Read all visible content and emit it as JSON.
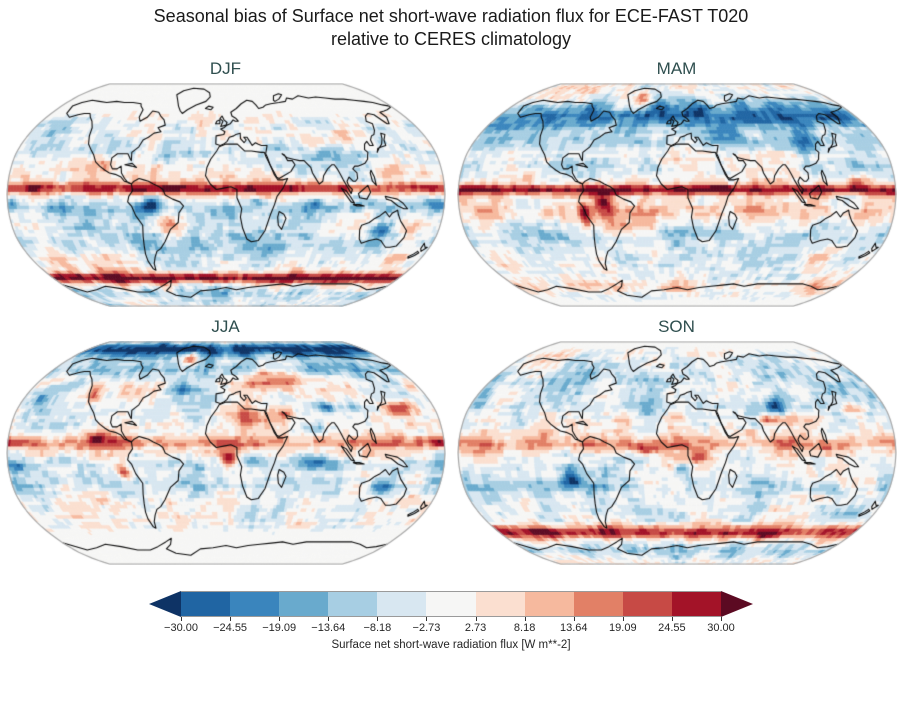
{
  "figure": {
    "title_line1": "Seasonal bias of Surface net short-wave radiation flux for ECE-FAST T020",
    "title_line2": "relative to CERES climatology",
    "title_color": "#1a1a1a",
    "panel_title_color": "#2F4F4F"
  },
  "chart_data": {
    "type": "heatmap",
    "projection": "robinson",
    "variable": "Surface net short-wave radiation flux bias",
    "units": "W m**-2",
    "panels": [
      {
        "label": "DJF",
        "seed": 7,
        "damp": {
          "pole": "north",
          "start": 55,
          "end": 70
        },
        "bands": [
          [
            5,
            4,
            26
          ],
          [
            -10,
            7,
            -12
          ],
          [
            33,
            9,
            -8
          ],
          [
            50,
            6,
            -5
          ],
          [
            -35,
            9,
            -9
          ],
          [
            -61,
            4,
            34
          ],
          [
            -74,
            5,
            -8
          ],
          [
            -85,
            6,
            -4
          ]
        ],
        "blobs": [
          [
            -62,
            -6,
            9,
            6,
            -30
          ],
          [
            -50,
            -22,
            8,
            6,
            16
          ],
          [
            24,
            -4,
            8,
            5,
            -16
          ],
          [
            25,
            -27,
            8,
            5,
            -10
          ],
          [
            75,
            -6,
            12,
            5,
            -14
          ],
          [
            133,
            -25,
            10,
            6,
            -24
          ],
          [
            118,
            -13,
            6,
            4,
            16
          ],
          [
            90,
            40,
            22,
            7,
            16
          ],
          [
            -100,
            22,
            8,
            5,
            12
          ],
          [
            178,
            -6,
            10,
            5,
            -16
          ],
          [
            -115,
            -22,
            12,
            6,
            -8
          ],
          [
            40,
            -15,
            8,
            5,
            -6
          ],
          [
            -30,
            40,
            12,
            6,
            -6
          ]
        ]
      },
      {
        "label": "MAM",
        "seed": 13,
        "damp": {
          "pole": "south",
          "start": -75,
          "end": -88
        },
        "bands": [
          [
            58,
            11,
            -24
          ],
          [
            40,
            7,
            -10
          ],
          [
            4,
            3.5,
            30
          ],
          [
            -13,
            6,
            8
          ],
          [
            -30,
            8,
            -6
          ],
          [
            -68,
            5,
            8
          ],
          [
            20,
            6,
            -4
          ]
        ],
        "blobs": [
          [
            -40,
            72,
            9,
            6,
            20
          ],
          [
            -60,
            -5,
            8,
            6,
            24
          ],
          [
            -76,
            -13,
            4,
            8,
            26
          ],
          [
            22,
            -2,
            7,
            5,
            -14
          ],
          [
            38,
            6,
            5,
            4,
            12
          ],
          [
            48,
            22,
            8,
            5,
            10
          ],
          [
            70,
            45,
            13,
            5,
            10
          ],
          [
            113,
            35,
            10,
            6,
            -12
          ],
          [
            -125,
            13,
            10,
            4,
            10
          ],
          [
            -110,
            42,
            9,
            6,
            10
          ],
          [
            100,
            -25,
            9,
            5,
            8
          ],
          [
            -65,
            -35,
            6,
            7,
            -8
          ],
          [
            150,
            10,
            12,
            5,
            14
          ]
        ]
      },
      {
        "label": "JJA",
        "seed": 29,
        "damp": {
          "pole": "south",
          "start": -52,
          "end": -66
        },
        "bands": [
          [
            80,
            8,
            -32
          ],
          [
            62,
            6,
            -12
          ],
          [
            8,
            5,
            16
          ],
          [
            -8,
            5,
            -8
          ],
          [
            -22,
            7,
            -7
          ],
          [
            35,
            6,
            -4
          ]
        ],
        "blobs": [
          [
            -40,
            72,
            9,
            6,
            22
          ],
          [
            35,
            55,
            18,
            7,
            20
          ],
          [
            58,
            54,
            12,
            6,
            16
          ],
          [
            15,
            28,
            18,
            7,
            16
          ],
          [
            50,
            28,
            10,
            6,
            22
          ],
          [
            88,
            33,
            9,
            4,
            -28
          ],
          [
            77,
            20,
            6,
            4,
            -10
          ],
          [
            150,
            33,
            16,
            5,
            28
          ],
          [
            108,
            32,
            8,
            5,
            -10
          ],
          [
            -165,
            42,
            14,
            7,
            -18
          ],
          [
            -140,
            50,
            10,
            6,
            -12
          ],
          [
            -40,
            48,
            11,
            6,
            -16
          ],
          [
            -118,
            42,
            7,
            6,
            20
          ],
          [
            -105,
            12,
            9,
            4,
            18
          ],
          [
            -85,
            -13,
            7,
            6,
            26
          ],
          [
            3,
            -4,
            8,
            5,
            22
          ],
          [
            75,
            -8,
            11,
            4,
            -14
          ],
          [
            133,
            -25,
            9,
            6,
            -8
          ],
          [
            -172,
            -10,
            8,
            5,
            -14
          ],
          [
            -110,
            -30,
            12,
            6,
            9
          ],
          [
            179,
            8,
            8,
            4,
            20
          ]
        ]
      },
      {
        "label": "SON",
        "seed": 41,
        "damp": {
          "pole": "north",
          "start": 76,
          "end": 88
        },
        "bands": [
          [
            55,
            12,
            -8
          ],
          [
            35,
            7,
            -6
          ],
          [
            6,
            4,
            13
          ],
          [
            -25,
            8,
            -7
          ],
          [
            -42,
            6,
            -4
          ],
          [
            -58,
            5,
            28
          ],
          [
            -73,
            5,
            -9
          ],
          [
            12,
            5,
            5
          ]
        ],
        "blobs": [
          [
            87,
            34,
            9,
            5,
            -26
          ],
          [
            77,
            24,
            6,
            4,
            22
          ],
          [
            62,
            15,
            7,
            4,
            12
          ],
          [
            150,
            33,
            14,
            4,
            18
          ],
          [
            -25,
            2,
            10,
            4,
            20
          ],
          [
            20,
            -1,
            9,
            5,
            22
          ],
          [
            -88,
            -18,
            9,
            7,
            -28
          ],
          [
            5,
            -12,
            6,
            5,
            -22
          ],
          [
            -58,
            -12,
            8,
            6,
            -12
          ],
          [
            133,
            -25,
            8,
            5,
            -10
          ],
          [
            -150,
            38,
            12,
            5,
            8
          ],
          [
            100,
            -30,
            8,
            4,
            8
          ],
          [
            120,
            2,
            8,
            4,
            10
          ],
          [
            -172,
            40,
            10,
            6,
            -10
          ]
        ]
      }
    ],
    "colorbar": {
      "ticks": [
        "−30.00",
        "−24.55",
        "−19.09",
        "−13.64",
        "−8.18",
        "−2.73",
        "2.73",
        "8.18",
        "13.64",
        "19.09",
        "24.55",
        "30.00"
      ],
      "tick_values": [
        -30.0,
        -24.55,
        -19.09,
        -13.64,
        -8.18,
        -2.73,
        2.73,
        8.18,
        13.64,
        19.09,
        24.55,
        30.0
      ],
      "label": "Surface net short-wave radiation flux [W m**-2]",
      "colors": [
        "#2065a3",
        "#3a85bd",
        "#69aacd",
        "#a7cee3",
        "#d8e7f1",
        "#f6f6f5",
        "#fbdfd0",
        "#f6b99e",
        "#e28066",
        "#c74a45",
        "#a31328"
      ],
      "under_color": "#0e3365",
      "over_color": "#5c0a22"
    }
  }
}
